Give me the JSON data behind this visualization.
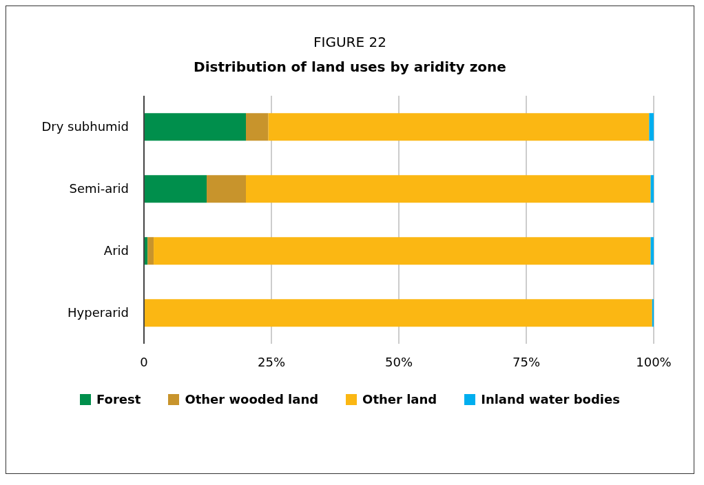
{
  "chart_data": {
    "type": "bar",
    "title": "FIGURE 22",
    "subtitle": "Distribution of land uses by aridity zone",
    "orientation": "horizontal",
    "stacked": true,
    "categories": [
      "Dry subhumid",
      "Semi-arid",
      "Arid",
      "Hyperarid"
    ],
    "series": [
      {
        "name": "Forest",
        "color": "#008f4c",
        "values": [
          20.0,
          12.3,
          0.7,
          null
        ]
      },
      {
        "name": "Other wooded land",
        "color": "#c8942c",
        "values": [
          4.4,
          7.7,
          1.2,
          0
        ]
      },
      {
        "name": "Other land",
        "color": "#fbb713",
        "values": [
          74.7,
          79.4,
          97.5,
          99.7
        ]
      },
      {
        "name": "Inland water bodies",
        "color": "#00aeef",
        "values": [
          0.9,
          0.6,
          0.6,
          0.3
        ]
      }
    ],
    "xlim": [
      0,
      100
    ],
    "xticks": [
      0,
      {
        "value": 25,
        "label": "25%"
      },
      {
        "value": 50,
        "label": "50%"
      },
      {
        "value": 75,
        "label": "75%"
      },
      {
        "value": 100,
        "label": "100%"
      }
    ],
    "grid": "x",
    "legend": "bottom"
  }
}
